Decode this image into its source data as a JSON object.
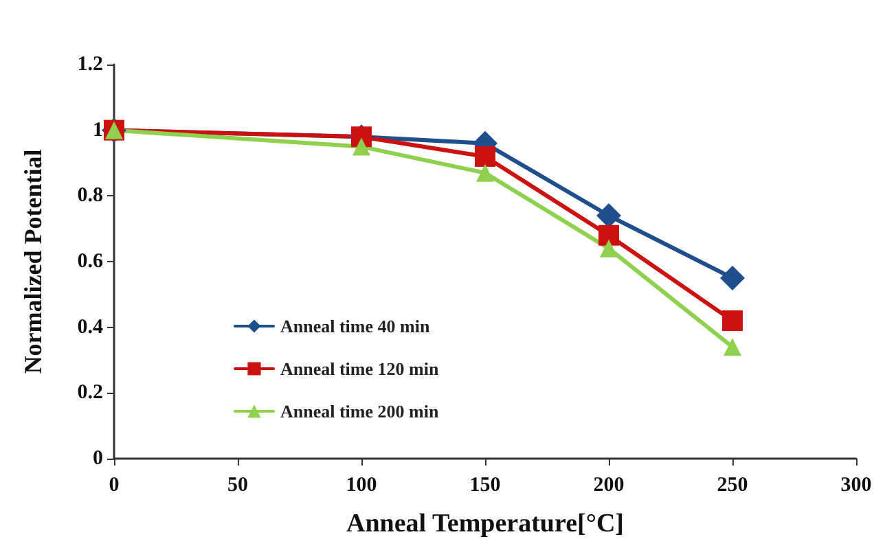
{
  "chart_data": {
    "type": "line",
    "xlabel": "Anneal Temperature[°C]",
    "ylabel": "Normalized Potential",
    "x": [
      0,
      100,
      150,
      200,
      250
    ],
    "series": [
      {
        "name": "Anneal time 40 min",
        "color": "#1f4e8c",
        "marker": "diamond",
        "values": [
          1,
          0.98,
          0.96,
          0.74,
          0.55
        ]
      },
      {
        "name": "Anneal time 120 min",
        "color": "#cc1111",
        "marker": "square",
        "values": [
          1,
          0.98,
          0.92,
          0.68,
          0.42
        ]
      },
      {
        "name": "Anneal time 200 min",
        "color": "#8fd14f",
        "marker": "triangle",
        "values": [
          1,
          0.95,
          0.87,
          0.64,
          0.34
        ]
      }
    ],
    "xlim": [
      0,
      300
    ],
    "xticks": [
      0,
      50,
      100,
      150,
      200,
      250,
      300
    ],
    "ylim": [
      0,
      1.2
    ],
    "yticks": [
      0,
      0.2,
      0.4,
      0.6,
      0.8,
      1,
      1.2
    ],
    "grid": false,
    "legend": "bottom left",
    "line_style": "solid"
  }
}
